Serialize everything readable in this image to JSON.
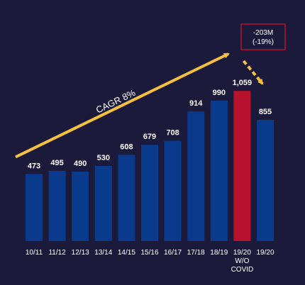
{
  "chart_data": {
    "type": "bar",
    "categories": [
      "10/11",
      "11/12",
      "12/13",
      "13/14",
      "14/15",
      "15/16",
      "16/17",
      "17/18",
      "18/19",
      "19/20",
      "19/20"
    ],
    "category_sublabels": [
      "",
      "",
      "",
      "",
      "",
      "",
      "",
      "",
      "",
      "W/O COVID",
      ""
    ],
    "values": [
      473,
      495,
      490,
      530,
      608,
      679,
      708,
      914,
      990,
      1059,
      855
    ],
    "value_labels": [
      "473",
      "495",
      "490",
      "530",
      "608",
      "679",
      "708",
      "914",
      "990",
      "1,059",
      "855"
    ],
    "highlight_index": 9,
    "ylim": [
      0,
      1100
    ],
    "grid": false,
    "legend": false,
    "colors": {
      "bar": "#0a3a8c",
      "highlight": "#b8122e",
      "arrow": "#f5c13d",
      "background": "#1b1a3a",
      "annotation_border": "#b8122e"
    },
    "annotations": {
      "trend_label": "CAGR 8%",
      "difference_line1": "-203M",
      "difference_line2": "(-19%)"
    }
  }
}
